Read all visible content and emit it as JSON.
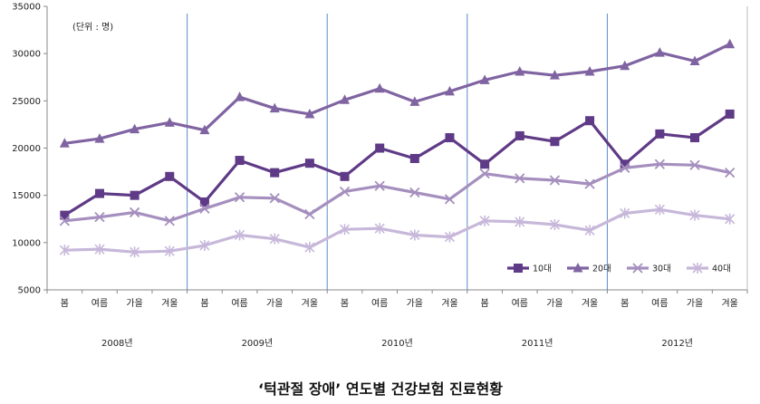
{
  "chart_data": {
    "type": "line",
    "title": "‘턱관절 장애’ 연도별 건강보험 진료현황",
    "unit_note": "(단위 : 명)",
    "ylim": [
      5000,
      35000
    ],
    "y_ticks": [
      5000,
      10000,
      15000,
      20000,
      25000,
      30000,
      35000
    ],
    "categories": [
      "봄",
      "여름",
      "가을",
      "겨울",
      "봄",
      "여름",
      "가을",
      "겨울",
      "봄",
      "여름",
      "가을",
      "겨울",
      "봄",
      "여름",
      "가을",
      "겨울",
      "봄",
      "여름",
      "가을",
      "겨울"
    ],
    "years": [
      "2008년",
      "2009년",
      "2010년",
      "2011년",
      "2012년"
    ],
    "legend_position": "bottom-right",
    "series": [
      {
        "name": "10대",
        "color": "#5f3a86",
        "marker": "square",
        "values": [
          12900,
          15200,
          15000,
          17000,
          14300,
          18700,
          17400,
          18400,
          17000,
          20000,
          18900,
          21100,
          18300,
          21300,
          20700,
          22900,
          18300,
          21500,
          21100,
          23600
        ]
      },
      {
        "name": "20대",
        "color": "#8064a2",
        "marker": "triangle",
        "values": [
          20500,
          21000,
          22000,
          22700,
          21900,
          25400,
          24200,
          23600,
          25100,
          26300,
          24900,
          26000,
          27200,
          28100,
          27700,
          28100,
          28700,
          30100,
          29200,
          31000
        ]
      },
      {
        "name": "30대",
        "color": "#a58fbe",
        "marker": "x",
        "values": [
          12300,
          12700,
          13200,
          12300,
          13600,
          14800,
          14700,
          13000,
          15400,
          16000,
          15300,
          14600,
          17300,
          16800,
          16600,
          16200,
          17900,
          18300,
          18200,
          17400
        ]
      },
      {
        "name": "40대",
        "color": "#c7b8da",
        "marker": "star",
        "values": [
          9200,
          9300,
          9000,
          9100,
          9700,
          10800,
          10400,
          9500,
          11400,
          11500,
          10800,
          10600,
          12300,
          12200,
          11900,
          11300,
          13100,
          13500,
          12900,
          12500
        ]
      }
    ]
  }
}
